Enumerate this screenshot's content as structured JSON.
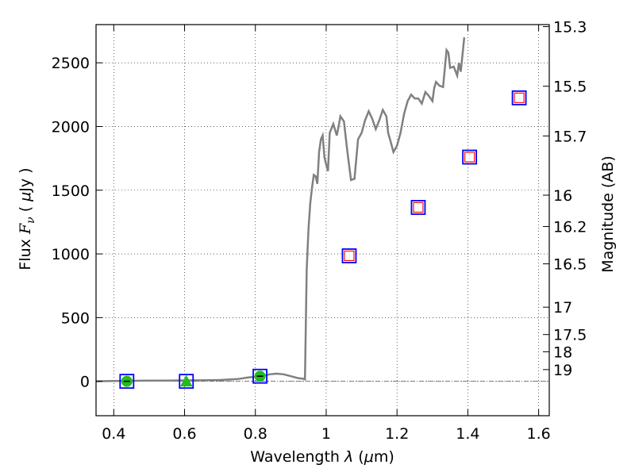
{
  "chart_data": {
    "type": "scatter",
    "xlabel": "Wavelength  λ (μm)",
    "ylabel": "Flux  F_ν  ( μJy )",
    "ylabel_parts": {
      "prefix": "Flux  ",
      "italic_f": "F",
      "sub_nu": "ν",
      "mid": "  ( ",
      "mu": "μ",
      "suffix": "Jy )"
    },
    "xlabel_parts": {
      "prefix": "Wavelength  ",
      "lambda": "λ",
      "mid": " (",
      "mu": "μ",
      "suffix": "m)"
    },
    "y2label": "Magnitude (AB)",
    "xlim": [
      0.35,
      1.63
    ],
    "ylim": [
      -270,
      2800
    ],
    "grid": true,
    "x_ticks": [
      0.4,
      0.6,
      0.8,
      1.0,
      1.2,
      1.4,
      1.6
    ],
    "x_tick_labels": [
      "0.4",
      "0.6",
      "0.8",
      "1",
      "1.2",
      "1.4",
      "1.6"
    ],
    "y_ticks": [
      0,
      500,
      1000,
      1500,
      2000,
      2500
    ],
    "y_tick_labels": [
      "0",
      "500",
      "1000",
      "1500",
      "2000",
      "2500"
    ],
    "mag_ticks": [
      {
        "label": "15.3",
        "flux": 2784
      },
      {
        "label": "15.5",
        "flux": 2316
      },
      {
        "label": "15.7",
        "flux": 1926
      },
      {
        "label": "16",
        "flux": 1461
      },
      {
        "label": "16.2",
        "flux": 1215
      },
      {
        "label": "16.5",
        "flux": 922
      },
      {
        "label": "17",
        "flux": 582
      },
      {
        "label": "17.5",
        "flux": 367
      },
      {
        "label": "18",
        "flux": 232
      },
      {
        "label": "19",
        "flux": 92
      }
    ],
    "zero_line": 0,
    "spectrum": {
      "name": "model spectrum",
      "color": "#808080",
      "x": [
        0.35,
        0.4,
        0.45,
        0.5,
        0.55,
        0.6,
        0.65,
        0.7,
        0.75,
        0.78,
        0.8,
        0.82,
        0.84,
        0.86,
        0.88,
        0.9,
        0.92,
        0.935,
        0.94,
        0.945,
        0.95,
        0.955,
        0.96,
        0.965,
        0.97,
        0.975,
        0.98,
        0.985,
        0.99,
        0.995,
        1.0,
        1.005,
        1.01,
        1.02,
        1.03,
        1.035,
        1.04,
        1.05,
        1.06,
        1.07,
        1.08,
        1.09,
        1.1,
        1.11,
        1.12,
        1.13,
        1.14,
        1.15,
        1.16,
        1.17,
        1.175,
        1.18,
        1.19,
        1.2,
        1.21,
        1.22,
        1.23,
        1.24,
        1.25,
        1.26,
        1.27,
        1.28,
        1.29,
        1.3,
        1.305,
        1.31,
        1.32,
        1.33,
        1.34,
        1.345,
        1.35,
        1.36,
        1.37,
        1.375,
        1.38,
        1.39
      ],
      "y": [
        0,
        2,
        4,
        5,
        5,
        7,
        8,
        10,
        18,
        30,
        35,
        40,
        55,
        60,
        55,
        40,
        25,
        20,
        15,
        880,
        1200,
        1400,
        1520,
        1620,
        1610,
        1550,
        1800,
        1900,
        1930,
        1760,
        1700,
        1650,
        1950,
        2020,
        1930,
        2000,
        2080,
        2040,
        1800,
        1580,
        1590,
        1900,
        1950,
        2050,
        2120,
        2060,
        1980,
        2050,
        2130,
        2080,
        1950,
        1900,
        1800,
        1850,
        1950,
        2100,
        2200,
        2250,
        2220,
        2220,
        2180,
        2270,
        2240,
        2200,
        2300,
        2350,
        2320,
        2310,
        2600,
        2580,
        2460,
        2470,
        2400,
        2500,
        2430,
        2700
      ]
    },
    "series": [
      {
        "name": "filled circle",
        "color": "#22bb22",
        "marker": "circle",
        "x": [
          0.437,
          0.813
        ],
        "y": [
          0,
          40
        ]
      },
      {
        "name": "filled triangle",
        "color": "#22bb22",
        "marker": "triangle",
        "x": [
          0.605
        ],
        "y": [
          0
        ]
      },
      {
        "name": "open square",
        "color": "#ff0000",
        "marker": "square-open",
        "x": [
          1.065,
          1.26,
          1.405,
          1.545
        ],
        "y": [
          985,
          1365,
          1760,
          2225
        ]
      },
      {
        "name": "blue square",
        "color": "#0000ff",
        "marker": "square-frame",
        "x": [
          0.437,
          0.605,
          0.813,
          1.065,
          1.26,
          1.405,
          1.545
        ],
        "y": [
          0,
          0,
          40,
          985,
          1365,
          1760,
          2225
        ]
      }
    ]
  }
}
